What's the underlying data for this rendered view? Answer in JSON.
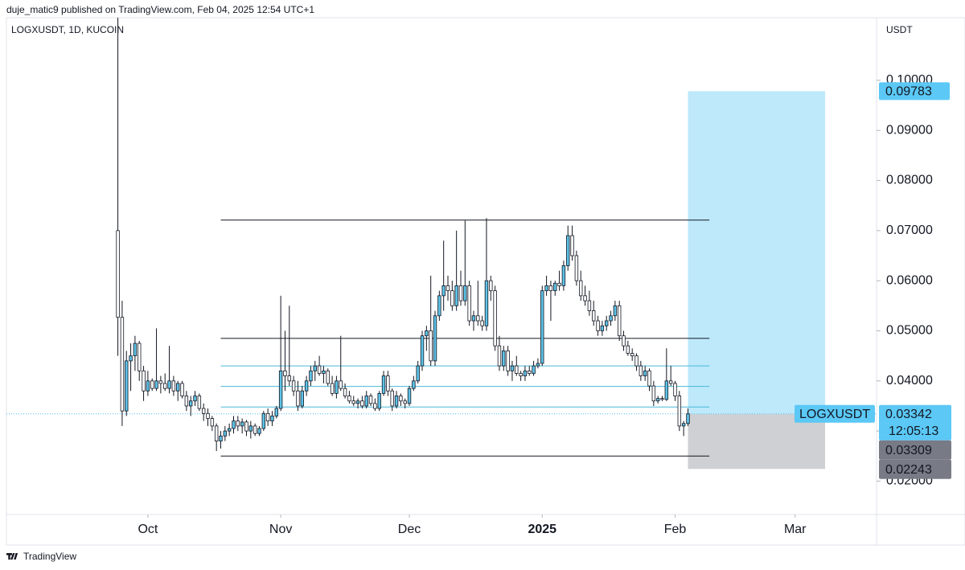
{
  "header": {
    "publisher": "duje_matic9 published on TradingView.com, Feb 04, 2025 12:54 UTC+1"
  },
  "footer": {
    "brand": "TradingView"
  },
  "chart_data": {
    "type": "candlestick",
    "symbol_label": "LOGXUSDT, 1D, KUCOIN",
    "currency": "USDT",
    "up_color": "#5ec3e8",
    "down_color": "#ffffff",
    "xlim": [
      -26,
      177
    ],
    "xticks": [
      {
        "value": 7,
        "label": "Oct"
      },
      {
        "value": 38,
        "label": "Nov"
      },
      {
        "value": 68,
        "label": "Dec"
      },
      {
        "value": 99,
        "label": "2025"
      },
      {
        "value": 130,
        "label": "Feb"
      },
      {
        "value": 158,
        "label": "Mar"
      }
    ],
    "ylim": [
      0.01333,
      0.1125
    ],
    "yticks": [
      {
        "value": 0.02,
        "label": "0.02000"
      },
      {
        "value": 0.03,
        "label": "0.03000"
      },
      {
        "value": 0.04,
        "label": "0.04000"
      },
      {
        "value": 0.05,
        "label": "0.05000"
      },
      {
        "value": 0.06,
        "label": "0.06000"
      },
      {
        "value": 0.07,
        "label": "0.07000"
      },
      {
        "value": 0.08,
        "label": "0.08000"
      },
      {
        "value": 0.09,
        "label": "0.09000"
      },
      {
        "value": 0.1,
        "label": "0.10000"
      }
    ],
    "candles": [
      [
        0.07,
        0.115,
        0.045,
        0.0527
      ],
      [
        0.0527,
        0.056,
        0.031,
        0.034
      ],
      [
        0.034,
        0.046,
        0.033,
        0.044
      ],
      [
        0.044,
        0.0475,
        0.038,
        0.045
      ],
      [
        0.045,
        0.049,
        0.042,
        0.0475
      ],
      [
        0.0475,
        0.048,
        0.04,
        0.042
      ],
      [
        0.042,
        0.043,
        0.036,
        0.038
      ],
      [
        0.038,
        0.042,
        0.037,
        0.04
      ],
      [
        0.04,
        0.0405,
        0.038,
        0.0385
      ],
      [
        0.0385,
        0.0505,
        0.038,
        0.04
      ],
      [
        0.04,
        0.041,
        0.0375,
        0.0395
      ],
      [
        0.0395,
        0.0415,
        0.038,
        0.0385
      ],
      [
        0.0385,
        0.047,
        0.0375,
        0.04
      ],
      [
        0.04,
        0.041,
        0.037,
        0.038
      ],
      [
        0.038,
        0.04,
        0.036,
        0.0395
      ],
      [
        0.0395,
        0.04,
        0.0365,
        0.037
      ],
      [
        0.037,
        0.038,
        0.034,
        0.035
      ],
      [
        0.035,
        0.037,
        0.033,
        0.036
      ],
      [
        0.036,
        0.038,
        0.035,
        0.037
      ],
      [
        0.037,
        0.0375,
        0.034,
        0.0345
      ],
      [
        0.0345,
        0.0355,
        0.032,
        0.0335
      ],
      [
        0.0335,
        0.0345,
        0.031,
        0.0325
      ],
      [
        0.0325,
        0.033,
        0.03,
        0.031
      ],
      [
        0.031,
        0.0315,
        0.026,
        0.028
      ],
      [
        0.028,
        0.03,
        0.0265,
        0.029
      ],
      [
        0.029,
        0.031,
        0.028,
        0.03
      ],
      [
        0.03,
        0.0315,
        0.029,
        0.0305
      ],
      [
        0.0305,
        0.033,
        0.0295,
        0.032
      ],
      [
        0.032,
        0.033,
        0.03,
        0.031
      ],
      [
        0.031,
        0.0325,
        0.0295,
        0.0318
      ],
      [
        0.0318,
        0.0322,
        0.029,
        0.03
      ],
      [
        0.03,
        0.032,
        0.0285,
        0.031
      ],
      [
        0.031,
        0.0315,
        0.029,
        0.0295
      ],
      [
        0.0295,
        0.031,
        0.029,
        0.0305
      ],
      [
        0.0305,
        0.034,
        0.03,
        0.0335
      ],
      [
        0.0335,
        0.0345,
        0.031,
        0.032
      ],
      [
        0.032,
        0.034,
        0.031,
        0.033
      ],
      [
        0.033,
        0.035,
        0.0325,
        0.0345
      ],
      [
        0.0345,
        0.057,
        0.034,
        0.042
      ],
      [
        0.042,
        0.05,
        0.038,
        0.041
      ],
      [
        0.041,
        0.055,
        0.039,
        0.04
      ],
      [
        0.04,
        0.041,
        0.037,
        0.038
      ],
      [
        0.038,
        0.04,
        0.034,
        0.035
      ],
      [
        0.035,
        0.039,
        0.0345,
        0.038
      ],
      [
        0.038,
        0.041,
        0.037,
        0.04
      ],
      [
        0.04,
        0.043,
        0.039,
        0.042
      ],
      [
        0.042,
        0.044,
        0.04,
        0.043
      ],
      [
        0.043,
        0.045,
        0.041,
        0.0415
      ],
      [
        0.0415,
        0.043,
        0.0395,
        0.042
      ],
      [
        0.042,
        0.0425,
        0.039,
        0.0395
      ],
      [
        0.0395,
        0.041,
        0.037,
        0.0375
      ],
      [
        0.0375,
        0.041,
        0.0365,
        0.04
      ],
      [
        0.04,
        0.049,
        0.038,
        0.0385
      ],
      [
        0.0385,
        0.0395,
        0.0365,
        0.037
      ],
      [
        0.037,
        0.038,
        0.0355,
        0.036
      ],
      [
        0.036,
        0.037,
        0.035,
        0.0355
      ],
      [
        0.0355,
        0.0365,
        0.0345,
        0.036
      ],
      [
        0.036,
        0.037,
        0.0345,
        0.035
      ],
      [
        0.035,
        0.038,
        0.0345,
        0.037
      ],
      [
        0.037,
        0.0375,
        0.035,
        0.0355
      ],
      [
        0.0355,
        0.0365,
        0.034,
        0.0345
      ],
      [
        0.0345,
        0.038,
        0.034,
        0.0375
      ],
      [
        0.0375,
        0.042,
        0.037,
        0.041
      ],
      [
        0.041,
        0.042,
        0.037,
        0.038
      ],
      [
        0.038,
        0.0385,
        0.034,
        0.035
      ],
      [
        0.035,
        0.038,
        0.0345,
        0.037
      ],
      [
        0.037,
        0.0375,
        0.035,
        0.036
      ],
      [
        0.036,
        0.0365,
        0.0345,
        0.0355
      ],
      [
        0.0355,
        0.039,
        0.035,
        0.0385
      ],
      [
        0.0385,
        0.041,
        0.038,
        0.04
      ],
      [
        0.04,
        0.044,
        0.0395,
        0.043
      ],
      [
        0.043,
        0.05,
        0.042,
        0.049
      ],
      [
        0.049,
        0.051,
        0.046,
        0.05
      ],
      [
        0.05,
        0.061,
        0.043,
        0.044
      ],
      [
        0.044,
        0.054,
        0.043,
        0.053
      ],
      [
        0.053,
        0.058,
        0.052,
        0.057
      ],
      [
        0.057,
        0.068,
        0.054,
        0.059
      ],
      [
        0.059,
        0.061,
        0.056,
        0.058
      ],
      [
        0.058,
        0.06,
        0.054,
        0.055
      ],
      [
        0.055,
        0.07,
        0.054,
        0.059
      ],
      [
        0.059,
        0.062,
        0.055,
        0.056
      ],
      [
        0.056,
        0.072,
        0.055,
        0.059
      ],
      [
        0.059,
        0.06,
        0.051,
        0.052
      ],
      [
        0.052,
        0.054,
        0.05,
        0.053
      ],
      [
        0.053,
        0.06,
        0.051,
        0.052
      ],
      [
        0.052,
        0.053,
        0.05,
        0.051
      ],
      [
        0.051,
        0.0725,
        0.05,
        0.06
      ],
      [
        0.06,
        0.061,
        0.056,
        0.058
      ],
      [
        0.058,
        0.059,
        0.046,
        0.047
      ],
      [
        0.047,
        0.049,
        0.042,
        0.043
      ],
      [
        0.043,
        0.047,
        0.042,
        0.046
      ],
      [
        0.046,
        0.047,
        0.041,
        0.042
      ],
      [
        0.042,
        0.044,
        0.04,
        0.043
      ],
      [
        0.043,
        0.045,
        0.041,
        0.0415
      ],
      [
        0.0415,
        0.042,
        0.04,
        0.041
      ],
      [
        0.041,
        0.043,
        0.04,
        0.042
      ],
      [
        0.042,
        0.043,
        0.041,
        0.0415
      ],
      [
        0.0415,
        0.044,
        0.041,
        0.043
      ],
      [
        0.043,
        0.0445,
        0.0425,
        0.0435
      ],
      [
        0.0435,
        0.059,
        0.043,
        0.058
      ],
      [
        0.058,
        0.061,
        0.057,
        0.059
      ],
      [
        0.059,
        0.06,
        0.052,
        0.058
      ],
      [
        0.058,
        0.06,
        0.057,
        0.0595
      ],
      [
        0.0595,
        0.062,
        0.058,
        0.059
      ],
      [
        0.059,
        0.064,
        0.058,
        0.063
      ],
      [
        0.063,
        0.071,
        0.062,
        0.069
      ],
      [
        0.069,
        0.071,
        0.064,
        0.065
      ],
      [
        0.065,
        0.066,
        0.059,
        0.06
      ],
      [
        0.06,
        0.062,
        0.056,
        0.057
      ],
      [
        0.057,
        0.059,
        0.055,
        0.056
      ],
      [
        0.056,
        0.058,
        0.053,
        0.054
      ],
      [
        0.054,
        0.056,
        0.051,
        0.052
      ],
      [
        0.052,
        0.053,
        0.049,
        0.05
      ],
      [
        0.05,
        0.052,
        0.049,
        0.051
      ],
      [
        0.051,
        0.053,
        0.05,
        0.052
      ],
      [
        0.052,
        0.054,
        0.051,
        0.053
      ],
      [
        0.053,
        0.056,
        0.052,
        0.055
      ],
      [
        0.055,
        0.056,
        0.048,
        0.049
      ],
      [
        0.049,
        0.05,
        0.046,
        0.047
      ],
      [
        0.047,
        0.048,
        0.045,
        0.0455
      ],
      [
        0.0455,
        0.0465,
        0.044,
        0.045
      ],
      [
        0.045,
        0.0455,
        0.042,
        0.043
      ],
      [
        0.043,
        0.044,
        0.04,
        0.041
      ],
      [
        0.041,
        0.043,
        0.04,
        0.042
      ],
      [
        0.042,
        0.0425,
        0.038,
        0.039
      ],
      [
        0.039,
        0.04,
        0.035,
        0.036
      ],
      [
        0.036,
        0.037,
        0.0355,
        0.0365
      ],
      [
        0.0365,
        0.037,
        0.036,
        0.0363
      ],
      [
        0.0363,
        0.0465,
        0.036,
        0.04
      ],
      [
        0.04,
        0.043,
        0.039,
        0.0395
      ],
      [
        0.0395,
        0.04,
        0.036,
        0.037
      ],
      [
        0.037,
        0.038,
        0.03,
        0.031
      ],
      [
        0.031,
        0.032,
        0.029,
        0.0315
      ],
      [
        0.0315,
        0.0345,
        0.031,
        0.03342
      ]
    ],
    "levels": [
      {
        "price": 0.0721,
        "from": 24,
        "to": 138,
        "color": "#131722"
      },
      {
        "price": 0.0485,
        "from": 24,
        "to": 138,
        "color": "#131722"
      },
      {
        "price": 0.043,
        "from": 24,
        "to": 138,
        "color": "#4ab8d8"
      },
      {
        "price": 0.0389,
        "from": 24,
        "to": 138,
        "color": "#4ab8d8"
      },
      {
        "price": 0.0348,
        "from": 24,
        "to": 138,
        "color": "#4ab8d8"
      },
      {
        "price": 0.025,
        "from": 24,
        "to": 138,
        "color": "#131722"
      }
    ],
    "target_zone": {
      "top": 0.09783,
      "bottom": 0.03342,
      "from": 133,
      "to": 165,
      "color": "#bde9fb"
    },
    "stop_zone": {
      "top": 0.03342,
      "bottom": 0.02243,
      "from": 133,
      "to": 165,
      "color": "#cfd0d4"
    },
    "target_price": 0.09783,
    "last_price": 0.03342,
    "last_symbol": "LOGXUSDT",
    "countdown": "12:05:13",
    "avg_price": 0.03309,
    "stop_price": 0.02243
  }
}
